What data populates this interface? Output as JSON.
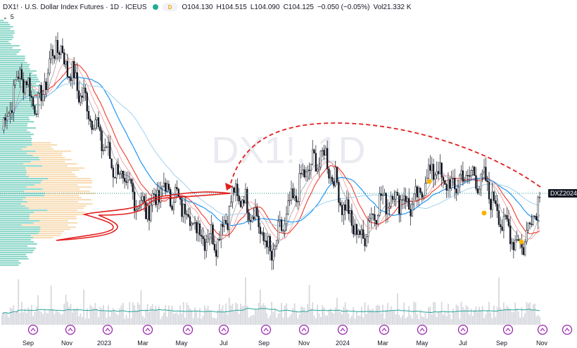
{
  "header": {
    "title": "DX1! · U.S. Dollar Index Futures · 1D · ICEUS",
    "badge": "D",
    "o_label": "O",
    "o_value": "104.130",
    "h_label": "H",
    "h_value": "104.515",
    "l_label": "L",
    "l_value": "104.090",
    "c_label": "C",
    "c_value": "104.125",
    "change": "−0.050 (−0.05%)",
    "vol_label": "Vol",
    "vol_value": "21.332 K",
    "indicator_count": "5"
  },
  "watermark": "DX1!, 1D",
  "price_tag": "DXZ2024",
  "colors": {
    "candle": "#131722",
    "ma_red": "#ef3b2c",
    "ma_blue": "#2196f3",
    "ma_pink": "#f7a7a7",
    "ma_lightblue": "#9fd1ef",
    "ma_gray": "#9e9e9e",
    "profile_green": "#5fc7b4",
    "profile_orange": "#f6d6a8",
    "annotation": "#e31e1e",
    "dotted_level": "#2a9d8f",
    "volume": "#d6d8de",
    "volume_ma": "#26a69a",
    "event_icon": "#9c27b0",
    "marker": "#f5b400"
  },
  "chart_data": {
    "type": "line",
    "symbol": "DX1!",
    "interval": "1D",
    "x_ticks": [
      "Sep",
      "Nov",
      "2023",
      "Mar",
      "May",
      "Jul",
      "Sep",
      "Nov",
      "2024",
      "Mar",
      "May",
      "Jul",
      "Sep",
      "Nov"
    ],
    "price_path": {
      "x": [
        "Aug 2022",
        "Sep 2022",
        "Sep 2022",
        "Oct 2022",
        "Oct 2022",
        "Nov 2022",
        "Nov 2022",
        "Dec 2022",
        "Jan 2023",
        "Feb 2023",
        "Mar 2023",
        "Apr 2023",
        "May 2023",
        "May 2023",
        "Jun 2023",
        "Jul 2023",
        "Aug 2023",
        "Sep 2023",
        "Oct 2023",
        "Nov 2023",
        "Dec 2023",
        "Jan 2024",
        "Feb 2024",
        "Mar 2024",
        "Apr 2024",
        "May 2024",
        "Jun 2024",
        "Jul 2024",
        "Aug 2024",
        "Sep 2024",
        "Oct 2024"
      ],
      "y": [
        108.5,
        112.5,
        110.0,
        114.5,
        112.0,
        109.5,
        106.5,
        104.5,
        103.0,
        104.5,
        103.5,
        101.5,
        101.0,
        104.2,
        103.0,
        99.8,
        103.0,
        105.8,
        106.8,
        103.5,
        101.0,
        103.5,
        104.0,
        103.3,
        106.0,
        104.5,
        105.5,
        104.8,
        102.0,
        100.5,
        104.1
      ]
    },
    "last_price": 104.125,
    "contract_label": "DXZ2024",
    "moving_averages": 5,
    "volume_profile": "left side, value area shaded",
    "annotations": [
      "dashed red arc from Oct 2024 back to Jun 2023",
      "red outline around Jan–Apr 2023 profile node",
      "dotted horizontal level at last price"
    ],
    "grid": false
  }
}
